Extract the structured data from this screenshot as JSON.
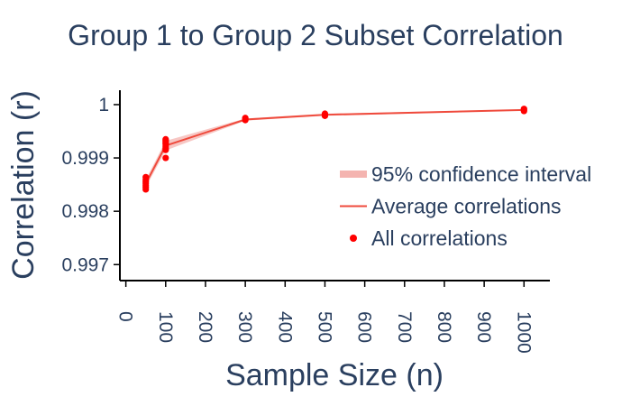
{
  "chart_data": {
    "type": "line",
    "title": "Group 1 to Group 2 Subset Correlation",
    "xlabel": "Sample Size (n)",
    "ylabel": "Correlation (r)",
    "xlim": [
      -15,
      1065
    ],
    "ylim": [
      0.9967,
      1.00027
    ],
    "xticks": [
      0,
      100,
      200,
      300,
      400,
      500,
      600,
      700,
      800,
      900,
      1000
    ],
    "xtick_labels": [
      "0",
      "100",
      "200",
      "300",
      "400",
      "500",
      "600",
      "700",
      "800",
      "900",
      "1000"
    ],
    "yticks": [
      0.997,
      0.998,
      0.999,
      1.0
    ],
    "ytick_labels": [
      "0.997",
      "0.998",
      "0.999",
      "1"
    ],
    "x_tick_label_rotation": "vertical",
    "grid": false,
    "legend_position": "right",
    "colors": {
      "points": "#ff0000",
      "average_line": "#ef4a3c",
      "confidence_band": "#f4b4b0"
    },
    "legend": [
      {
        "label": "95% confidence interval",
        "kind": "band"
      },
      {
        "label": "Average correlations",
        "kind": "line"
      },
      {
        "label": "All correlations",
        "kind": "dot"
      }
    ],
    "series": [
      {
        "name": "All correlations",
        "kind": "scatter",
        "points": [
          [
            50,
            0.99864
          ],
          [
            50,
            0.99859
          ],
          [
            50,
            0.99855
          ],
          [
            50,
            0.99852
          ],
          [
            50,
            0.99848
          ],
          [
            50,
            0.99845
          ],
          [
            50,
            0.99841
          ],
          [
            100,
            0.99935
          ],
          [
            100,
            0.99932
          ],
          [
            100,
            0.99929
          ],
          [
            100,
            0.99926
          ],
          [
            100,
            0.99922
          ],
          [
            100,
            0.99918
          ],
          [
            100,
            0.99915
          ],
          [
            100,
            0.999
          ],
          [
            300,
            0.99975
          ],
          [
            300,
            0.99973
          ],
          [
            300,
            0.99971
          ],
          [
            500,
            0.99983
          ],
          [
            500,
            0.99981
          ],
          [
            500,
            0.99979
          ],
          [
            1000,
            0.99992
          ],
          [
            1000,
            0.9999
          ],
          [
            1000,
            0.99988
          ]
        ]
      },
      {
        "name": "Average correlations",
        "kind": "line",
        "x": [
          50,
          100,
          300,
          500,
          1000
        ],
        "y": [
          0.99852,
          0.99923,
          0.99972,
          0.99981,
          0.9999
        ]
      },
      {
        "name": "95% confidence interval",
        "kind": "band",
        "x": [
          50,
          100,
          300,
          500,
          1000
        ],
        "lower": [
          0.99845,
          0.99914,
          0.9997,
          0.99979,
          0.99989
        ],
        "upper": [
          0.99859,
          0.99932,
          0.99974,
          0.99983,
          0.99991
        ]
      }
    ]
  }
}
